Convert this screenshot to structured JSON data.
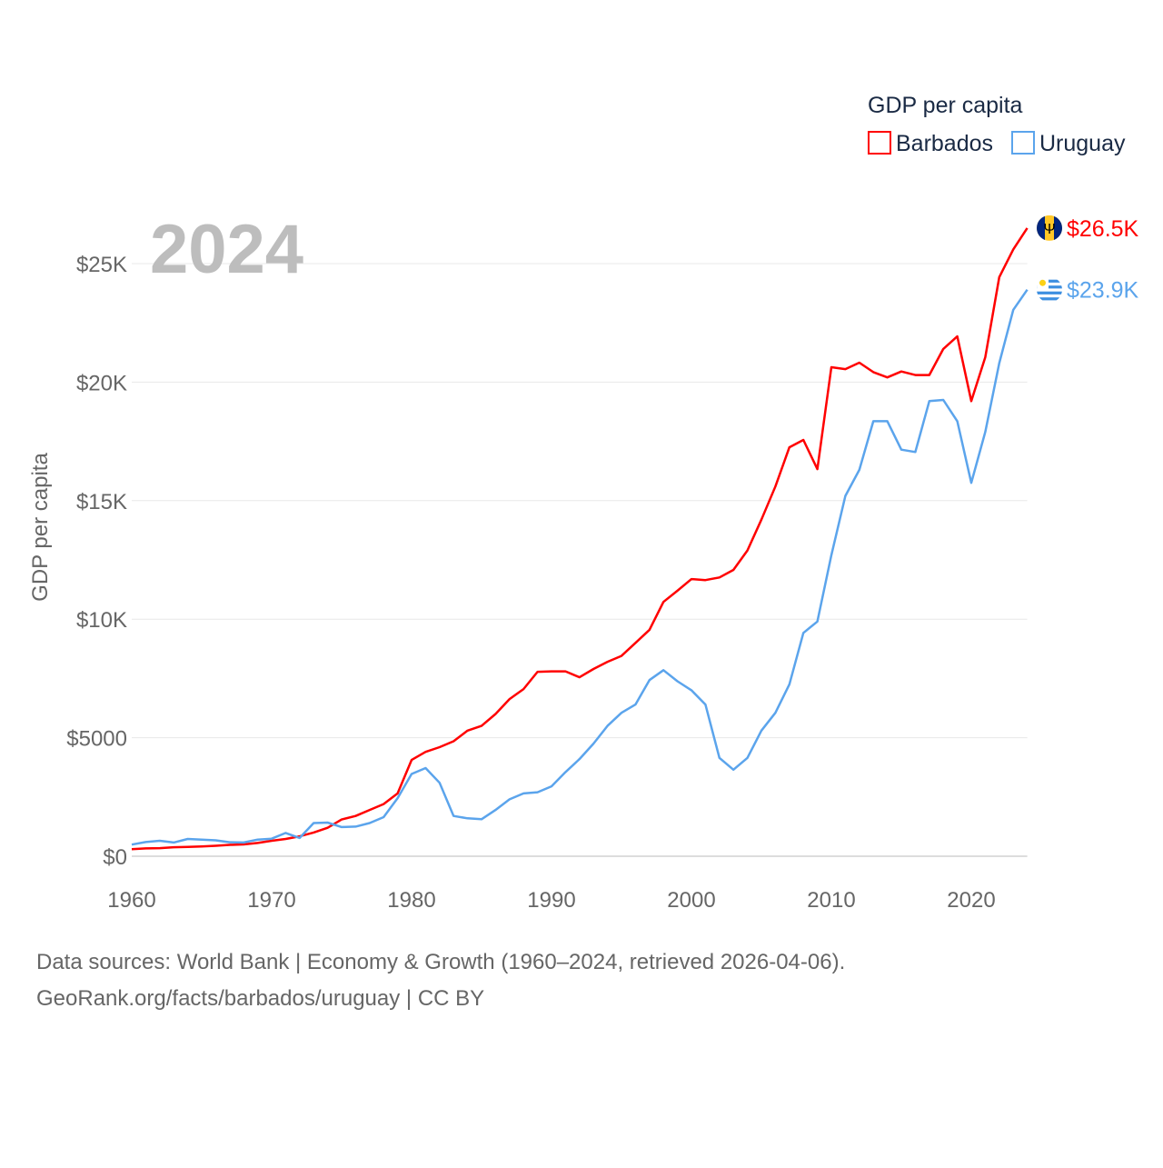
{
  "chart_data": {
    "type": "line",
    "title": "GDP per capita",
    "ylabel": "GDP per capita",
    "xlabel": "",
    "year_label": "2024",
    "xlim": [
      1960,
      2024
    ],
    "ylim": [
      0,
      27000
    ],
    "x_ticks": [
      1960,
      1970,
      1980,
      1990,
      2000,
      2010,
      2020
    ],
    "y_ticks": [
      {
        "value": 0,
        "label": "$0"
      },
      {
        "value": 5000,
        "label": "$5000"
      },
      {
        "value": 10000,
        "label": "$10K"
      },
      {
        "value": 15000,
        "label": "$15K"
      },
      {
        "value": 20000,
        "label": "$20K"
      },
      {
        "value": 25000,
        "label": "$25K"
      }
    ],
    "grid": true,
    "legend_position": "top-right",
    "x_start": 1960,
    "series": [
      {
        "name": "Barbados",
        "color": "#ff0000",
        "end_label": "$26.5K",
        "flag": "barbados-flag",
        "values": [
          300,
          330,
          340,
          380,
          390,
          410,
          440,
          480,
          500,
          560,
          650,
          730,
          840,
          1000,
          1200,
          1550,
          1700,
          1950,
          2200,
          2650,
          4060,
          4400,
          4600,
          4850,
          5300,
          5500,
          6000,
          6630,
          7050,
          7780,
          7800,
          7800,
          7550,
          7900,
          8200,
          8450,
          9000,
          9550,
          10730,
          11200,
          11690,
          11650,
          11760,
          12080,
          12900,
          14200,
          15600,
          17250,
          17560,
          16330,
          20630,
          20550,
          20820,
          20420,
          20200,
          20450,
          20300,
          20300,
          21400,
          21930,
          19200,
          21050,
          24430,
          25600,
          26500
        ]
      },
      {
        "name": "Uruguay",
        "color": "#5ba4ec",
        "end_label": "$23.9K",
        "flag": "uruguay-flag",
        "values": [
          490,
          600,
          650,
          580,
          730,
          700,
          670,
          590,
          580,
          700,
          740,
          980,
          770,
          1400,
          1420,
          1230,
          1250,
          1400,
          1650,
          2450,
          3470,
          3720,
          3100,
          1700,
          1600,
          1560,
          1950,
          2400,
          2650,
          2700,
          2950,
          3550,
          4100,
          4750,
          5500,
          6050,
          6400,
          7430,
          7850,
          7380,
          7000,
          6400,
          4150,
          3650,
          4150,
          5300,
          6050,
          7250,
          9420,
          9900,
          12700,
          15200,
          16300,
          18350,
          18350,
          17150,
          17050,
          19200,
          19250,
          18350,
          15750,
          17900,
          20800,
          23050,
          23900
        ]
      }
    ]
  },
  "footer": {
    "line1": "Data sources: World Bank | Economy & Growth (1960–2024, retrieved 2026-04-06).",
    "line2": "GeoRank.org/facts/barbados/uruguay | CC BY"
  }
}
